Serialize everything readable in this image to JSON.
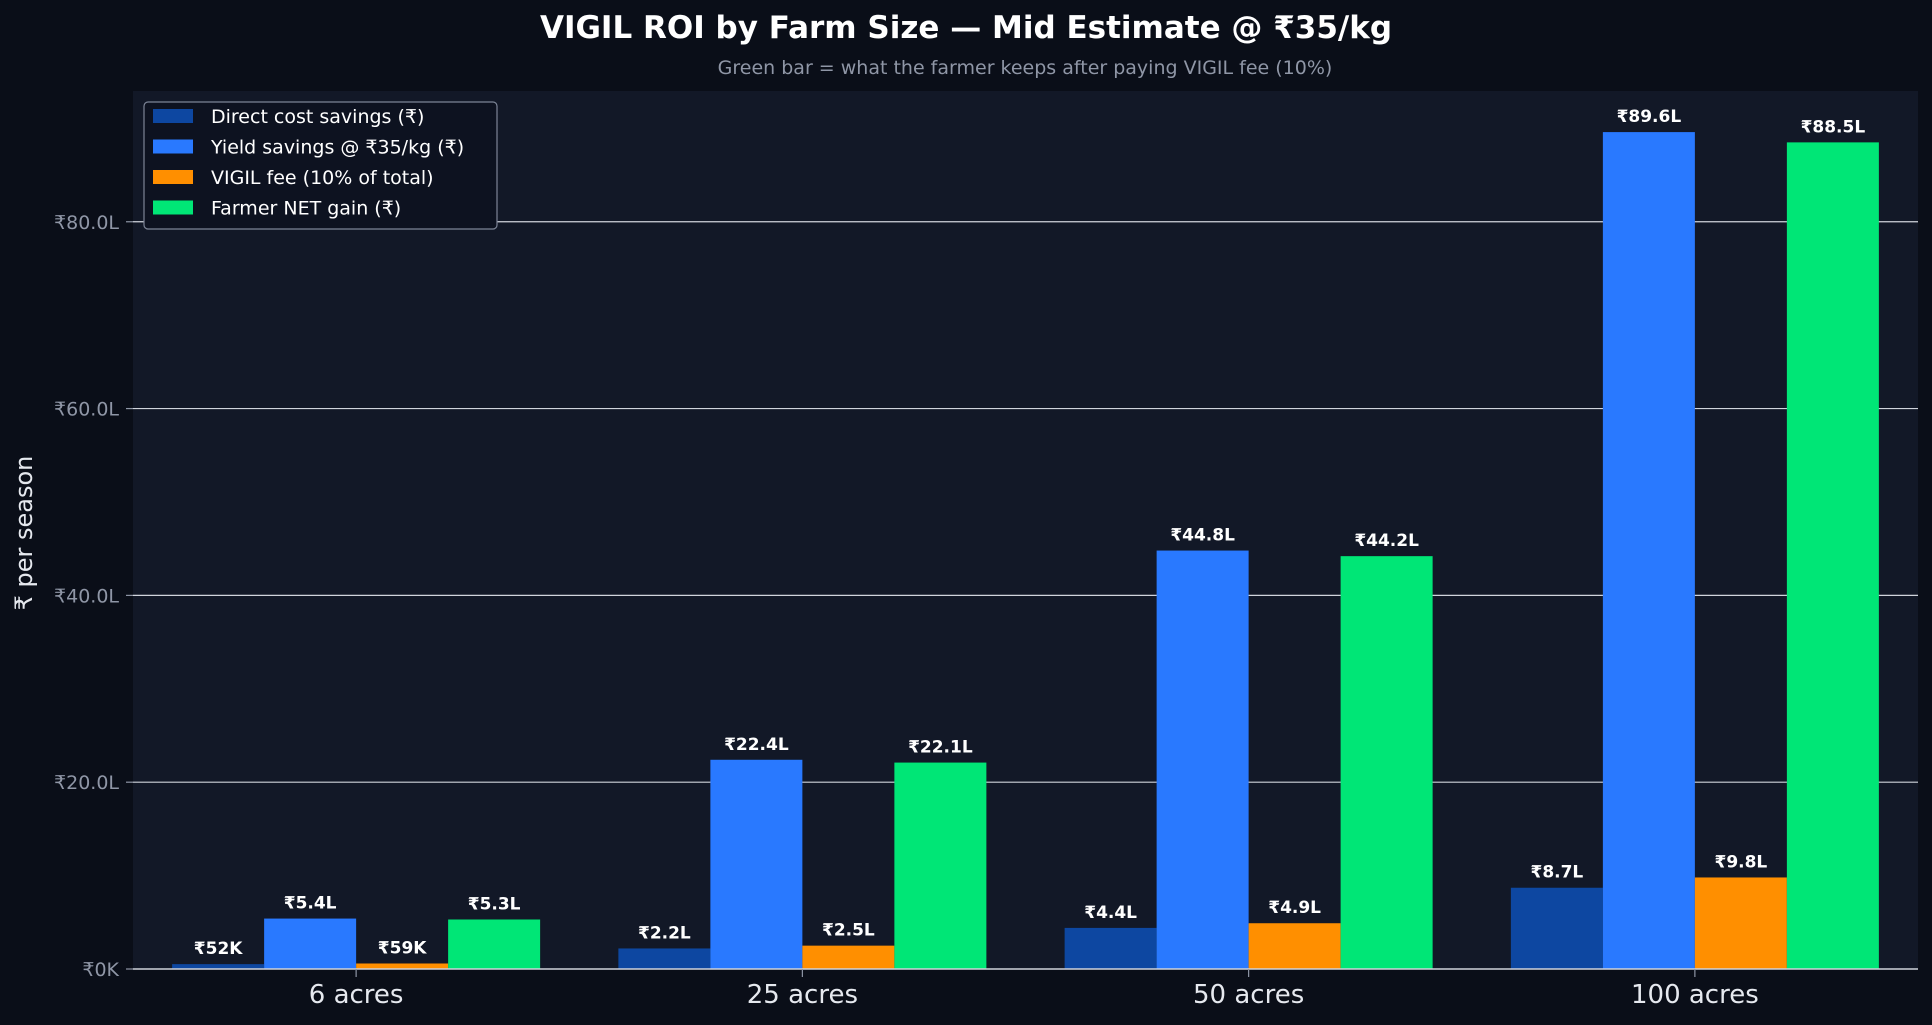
{
  "chart_data": {
    "type": "bar",
    "title": "VIGIL ROI by Farm Size — Mid Estimate @ ₹35/kg",
    "subtitle": "Green bar = what the farmer keeps after paying VIGIL fee (10%)",
    "xlabel": "",
    "ylabel": "₹ per season",
    "categories": [
      "6 acres",
      "25 acres",
      "50 acres",
      "100 acres"
    ],
    "y_unit": "lakh ₹",
    "ylim": [
      0,
      94
    ],
    "yticks": [
      0,
      20,
      40,
      60,
      80
    ],
    "ytick_labels": [
      "₹0K",
      "₹20.0L",
      "₹40.0L",
      "₹60.0L",
      "₹80.0L"
    ],
    "grid": "horizontal",
    "legend_position": "top-left",
    "series": [
      {
        "name": "Direct cost savings (₹)",
        "color": "#0d47a1",
        "values": [
          0.52,
          2.2,
          4.4,
          8.7
        ],
        "labels": [
          "₹52K",
          "₹2.2L",
          "₹4.4L",
          "₹8.7L"
        ]
      },
      {
        "name": "Yield savings @ ₹35/kg (₹)",
        "color": "#2979ff",
        "values": [
          5.4,
          22.4,
          44.8,
          89.6
        ],
        "labels": [
          "₹5.4L",
          "₹22.4L",
          "₹44.8L",
          "₹89.6L"
        ]
      },
      {
        "name": "VIGIL fee (10% of total)",
        "color": "#ff8f00",
        "values": [
          0.59,
          2.5,
          4.9,
          9.8
        ],
        "labels": [
          "₹59K",
          "₹2.5L",
          "₹4.9L",
          "₹9.8L"
        ]
      },
      {
        "name": "Farmer NET gain (₹)",
        "color": "#00e676",
        "values": [
          5.3,
          22.1,
          44.2,
          88.5
        ],
        "labels": [
          "₹5.3L",
          "₹22.1L",
          "₹44.2L",
          "₹88.5L"
        ]
      }
    ],
    "colors": {
      "page_background": "#0a0e18",
      "plot_background": "#121827",
      "grid": "#d0d4dc",
      "text": "#ffffff",
      "muted_text": "#8f96a6"
    }
  }
}
